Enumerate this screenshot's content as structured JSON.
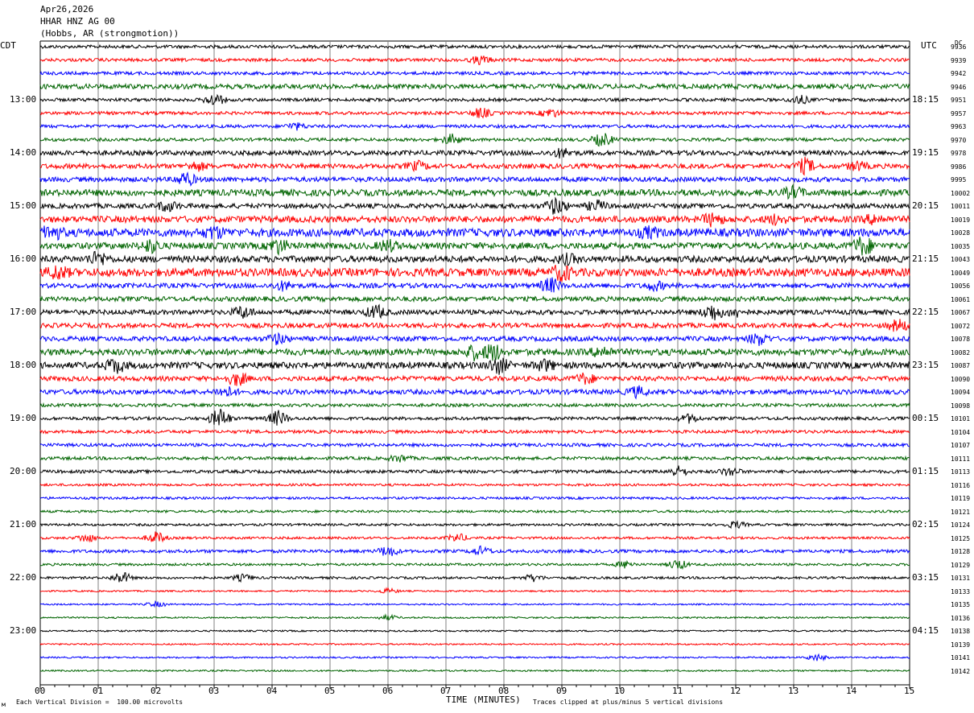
{
  "header": {
    "date": "Apr26,2026",
    "station": "HHAR HNZ AG 00",
    "location": "(Hobbs, AR (strongmotion))"
  },
  "left_tz": "CDT",
  "right_tz": "UTC",
  "dc_label": "DC",
  "footer": {
    "left_note": "Each Vertical Division =  100.00 microvolts",
    "right_note": "Traces clipped at plus/minus 5 vertical divisions",
    "corner_glyph": "м"
  },
  "colors": {
    "trace_cycle": [
      "#000000",
      "#ff0000",
      "#0000ff",
      "#006400"
    ],
    "grid": "#808080",
    "frame": "#000000"
  },
  "chart_data": {
    "type": "line",
    "xlabel": "TIME (MINUTES)",
    "xlim": [
      0,
      15
    ],
    "x_tick_labels": [
      "00",
      "01",
      "02",
      "03",
      "04",
      "05",
      "06",
      "07",
      "08",
      "09",
      "10",
      "11",
      "12",
      "13",
      "14",
      "15"
    ],
    "minutes_per_line": 15,
    "line_count": 48,
    "left_hour_labels": [
      "13:00",
      "14:00",
      "15:00",
      "16:00",
      "17:00",
      "18:00",
      "19:00",
      "20:00",
      "21:00",
      "22:00",
      "23:00"
    ],
    "right_hour_labels": [
      "18:15",
      "19:15",
      "20:15",
      "21:15",
      "22:15",
      "23:15",
      "00:15",
      "01:15",
      "02:15",
      "03:15",
      "04:15"
    ],
    "dc_offsets": [
      "9936",
      "9939",
      "9942",
      "9946",
      "9951",
      "9957",
      "9963",
      "9970",
      "9978",
      "9986",
      "9995",
      "10002",
      "10011",
      "10019",
      "10028",
      "10035",
      "10043",
      "10049",
      "10056",
      "10061",
      "10067",
      "10072",
      "10078",
      "10082",
      "10087",
      "10090",
      "10094",
      "10098",
      "10101",
      "10104",
      "10107",
      "10111",
      "10113",
      "10116",
      "10119",
      "10121",
      "10124",
      "10125",
      "10128",
      "10129",
      "10131",
      "10133",
      "10135",
      "10136",
      "10138",
      "10139",
      "10141",
      "10142"
    ],
    "noise_level": [
      2,
      2,
      2,
      3,
      2,
      2,
      2,
      2,
      3,
      3,
      3,
      4,
      3,
      4,
      5,
      4,
      4,
      5,
      3,
      3,
      3,
      3,
      3,
      4,
      4,
      3,
      3,
      2,
      2,
      2,
      2,
      2,
      2,
      1.5,
      1.5,
      1.5,
      1.5,
      1.5,
      2,
      1.5,
      1.5,
      1,
      1,
      1,
      1,
      1,
      1,
      1
    ],
    "events": [
      {
        "line": 1,
        "minute": 7.6,
        "amp": 5
      },
      {
        "line": 4,
        "minute": 3.0,
        "amp": 7
      },
      {
        "line": 4,
        "minute": 13.1,
        "amp": 5
      },
      {
        "line": 5,
        "minute": 7.6,
        "amp": 6
      },
      {
        "line": 5,
        "minute": 8.8,
        "amp": 5
      },
      {
        "line": 6,
        "minute": 4.4,
        "amp": 4
      },
      {
        "line": 7,
        "minute": 7.1,
        "amp": 6
      },
      {
        "line": 7,
        "minute": 9.7,
        "amp": 8
      },
      {
        "line": 8,
        "minute": 9.0,
        "amp": 5
      },
      {
        "line": 9,
        "minute": 2.7,
        "amp": 5
      },
      {
        "line": 9,
        "minute": 6.5,
        "amp": 5
      },
      {
        "line": 9,
        "minute": 13.2,
        "amp": 9
      },
      {
        "line": 9,
        "minute": 14.1,
        "amp": 5
      },
      {
        "line": 10,
        "minute": 2.5,
        "amp": 8
      },
      {
        "line": 11,
        "minute": 13.0,
        "amp": 6
      },
      {
        "line": 12,
        "minute": 2.2,
        "amp": 6
      },
      {
        "line": 12,
        "minute": 8.9,
        "amp": 10
      },
      {
        "line": 12,
        "minute": 9.6,
        "amp": 6
      },
      {
        "line": 13,
        "minute": 11.6,
        "amp": 7
      },
      {
        "line": 13,
        "minute": 12.7,
        "amp": 5
      },
      {
        "line": 13,
        "minute": 14.4,
        "amp": 5
      },
      {
        "line": 14,
        "minute": 0.2,
        "amp": 8
      },
      {
        "line": 14,
        "minute": 3.0,
        "amp": 6
      },
      {
        "line": 14,
        "minute": 10.5,
        "amp": 5
      },
      {
        "line": 15,
        "minute": 1.9,
        "amp": 7
      },
      {
        "line": 15,
        "minute": 4.1,
        "amp": 8
      },
      {
        "line": 15,
        "minute": 6.0,
        "amp": 6
      },
      {
        "line": 15,
        "minute": 14.2,
        "amp": 11
      },
      {
        "line": 16,
        "minute": 1.0,
        "amp": 8
      },
      {
        "line": 16,
        "minute": 9.1,
        "amp": 5
      },
      {
        "line": 17,
        "minute": 0.3,
        "amp": 7
      },
      {
        "line": 17,
        "minute": 9.0,
        "amp": 9
      },
      {
        "line": 18,
        "minute": 4.2,
        "amp": 5
      },
      {
        "line": 18,
        "minute": 8.8,
        "amp": 9
      },
      {
        "line": 18,
        "minute": 10.6,
        "amp": 5
      },
      {
        "line": 20,
        "minute": 3.5,
        "amp": 7
      },
      {
        "line": 20,
        "minute": 5.8,
        "amp": 8
      },
      {
        "line": 20,
        "minute": 11.6,
        "amp": 10
      },
      {
        "line": 20,
        "minute": 12.0,
        "amp": 5
      },
      {
        "line": 21,
        "minute": 14.8,
        "amp": 7
      },
      {
        "line": 22,
        "minute": 4.1,
        "amp": 6
      },
      {
        "line": 22,
        "minute": 12.4,
        "amp": 7
      },
      {
        "line": 23,
        "minute": 7.5,
        "amp": 8
      },
      {
        "line": 23,
        "minute": 7.8,
        "amp": 10
      },
      {
        "line": 23,
        "minute": 9.7,
        "amp": 6
      },
      {
        "line": 24,
        "minute": 1.3,
        "amp": 8
      },
      {
        "line": 24,
        "minute": 7.9,
        "amp": 9
      },
      {
        "line": 24,
        "minute": 8.7,
        "amp": 6
      },
      {
        "line": 25,
        "minute": 3.4,
        "amp": 8
      },
      {
        "line": 25,
        "minute": 9.4,
        "amp": 6
      },
      {
        "line": 26,
        "minute": 3.2,
        "amp": 6
      },
      {
        "line": 26,
        "minute": 10.3,
        "amp": 6
      },
      {
        "line": 28,
        "minute": 3.1,
        "amp": 12
      },
      {
        "line": 28,
        "minute": 4.1,
        "amp": 9
      },
      {
        "line": 28,
        "minute": 11.2,
        "amp": 5
      },
      {
        "line": 31,
        "minute": 6.2,
        "amp": 4
      },
      {
        "line": 32,
        "minute": 11.0,
        "amp": 6
      },
      {
        "line": 32,
        "minute": 11.9,
        "amp": 5
      },
      {
        "line": 36,
        "minute": 12.0,
        "amp": 4
      },
      {
        "line": 37,
        "minute": 0.8,
        "amp": 5
      },
      {
        "line": 37,
        "minute": 2.0,
        "amp": 7
      },
      {
        "line": 37,
        "minute": 7.2,
        "amp": 5
      },
      {
        "line": 38,
        "minute": 6.0,
        "amp": 6
      },
      {
        "line": 38,
        "minute": 7.6,
        "amp": 5
      },
      {
        "line": 39,
        "minute": 11.0,
        "amp": 6
      },
      {
        "line": 39,
        "minute": 10.1,
        "amp": 4
      },
      {
        "line": 40,
        "minute": 1.4,
        "amp": 7
      },
      {
        "line": 40,
        "minute": 3.5,
        "amp": 4
      },
      {
        "line": 40,
        "minute": 8.5,
        "amp": 4
      },
      {
        "line": 41,
        "minute": 6.0,
        "amp": 3
      },
      {
        "line": 42,
        "minute": 2.0,
        "amp": 3
      },
      {
        "line": 43,
        "minute": 6.0,
        "amp": 3
      },
      {
        "line": 46,
        "minute": 13.4,
        "amp": 4
      }
    ]
  }
}
